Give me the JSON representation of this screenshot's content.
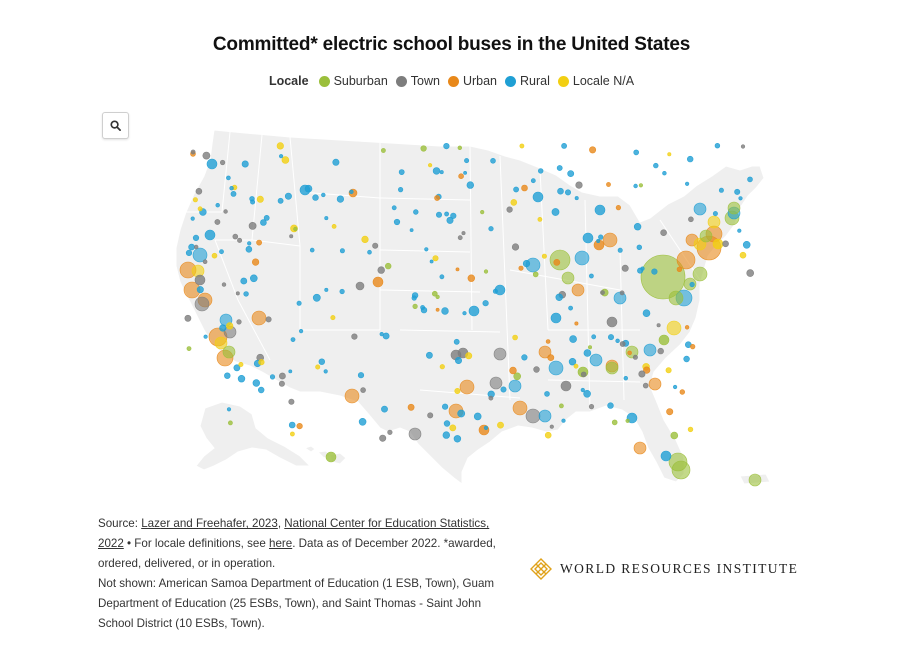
{
  "title": "Committed* electric school buses in the United States",
  "legend": {
    "title": "Locale",
    "items": [
      {
        "label": "Suburban",
        "color": "#9bbf3b"
      },
      {
        "label": "Town",
        "color": "#7d7d7d"
      },
      {
        "label": "Urban",
        "color": "#e8881a"
      },
      {
        "label": "Rural",
        "color": "#1f9fd4"
      },
      {
        "label": "Locale N/A",
        "color": "#f2cf12"
      }
    ]
  },
  "search_icon": "search-icon",
  "source": {
    "prefix": "Source: ",
    "link1": "Lazer and Freehafer, 2023",
    "sep1": ", ",
    "link2": "National Center for Education Statistics, 2022",
    "mid": " • For locale definitions, see ",
    "link3": "here",
    "tail": ". Data as of December 2022. *awarded, ordered, delivered, or in operation.",
    "not_shown": "Not shown: American Samoa Department of Education (1 ESB, Town), Guam Department of Education (25 ESBs, Town), and Saint Thomas - Saint John School District (10 ESBs, Town)."
  },
  "brand": "World Resources Institute",
  "colors": {
    "land": "#efefef",
    "border": "#ffffff",
    "suburban": "#9bbf3b",
    "town": "#7d7d7d",
    "urban": "#e8881a",
    "rural": "#1f9fd4",
    "na": "#f2cf12"
  }
}
